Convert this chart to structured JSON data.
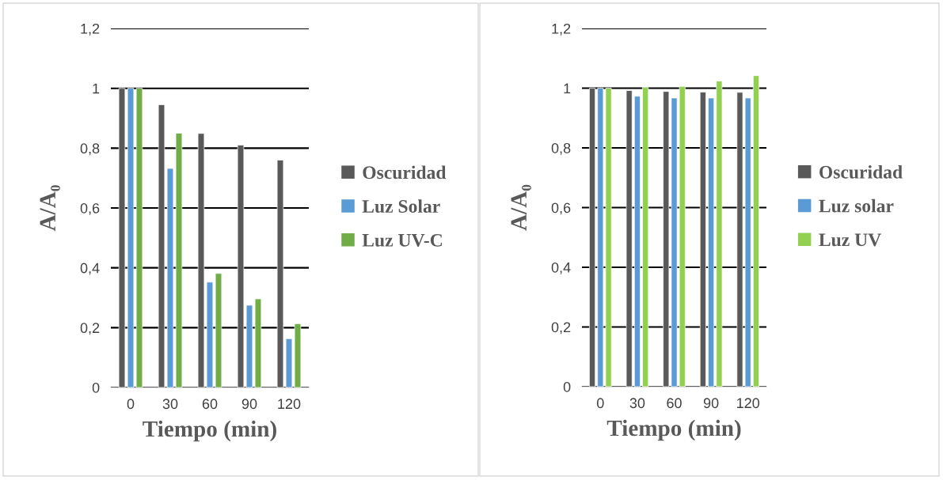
{
  "chart_data": [
    {
      "type": "bar",
      "categories": [
        "0",
        "30",
        "60",
        "90",
        "120"
      ],
      "xlabel": "Tiempo (min)",
      "ylabel": "A/A₀",
      "series": [
        {
          "name": "Oscuridad",
          "color": "#595959",
          "values": [
            1,
            0.945,
            0.849,
            0.81,
            0.76
          ]
        },
        {
          "name": "Luz Solar",
          "color": "#5b9bd5",
          "values": [
            1,
            0.732,
            0.352,
            0.275,
            0.163
          ]
        },
        {
          "name": "Luz UV-C",
          "color": "#70ad47",
          "values": [
            1,
            0.85,
            0.381,
            0.296,
            0.213
          ]
        }
      ],
      "ylim": [
        0,
        1.2
      ],
      "yticks": [
        {
          "value": 0,
          "label": "0"
        },
        {
          "value": 0.2,
          "label": "0,2"
        },
        {
          "value": 0.4,
          "label": "0,4"
        },
        {
          "value": 0.6,
          "label": "0,6"
        },
        {
          "value": 0.8,
          "label": "0,8"
        },
        {
          "value": 1,
          "label": "1"
        },
        {
          "value": 1.2,
          "label": "1,2"
        }
      ],
      "grid": "y",
      "legend": "right"
    },
    {
      "type": "bar",
      "categories": [
        "0",
        "30",
        "60",
        "90",
        "120"
      ],
      "xlabel": "Tiempo (min)",
      "ylabel": "A/A₀",
      "series": [
        {
          "name": "Oscuridad",
          "color": "#595959",
          "values": [
            1,
            0.992,
            0.989,
            0.987,
            0.986
          ]
        },
        {
          "name": "Luz solar",
          "color": "#5b9bd5",
          "values": [
            1,
            0.973,
            0.967,
            0.967,
            0.967
          ]
        },
        {
          "name": "Luz UV",
          "color": "#92d050",
          "values": [
            1,
            1.003,
            1.006,
            1.024,
            1.042
          ]
        }
      ],
      "ylim": [
        0,
        1.2
      ],
      "yticks": [
        {
          "value": 0,
          "label": "0"
        },
        {
          "value": 0.2,
          "label": "0,2"
        },
        {
          "value": 0.4,
          "label": "0,4"
        },
        {
          "value": 0.6,
          "label": "0,6"
        },
        {
          "value": 0.8,
          "label": "0,8"
        },
        {
          "value": 1,
          "label": "1"
        },
        {
          "value": 1.2,
          "label": "1,2"
        }
      ],
      "grid": "y",
      "legend": "right"
    }
  ]
}
